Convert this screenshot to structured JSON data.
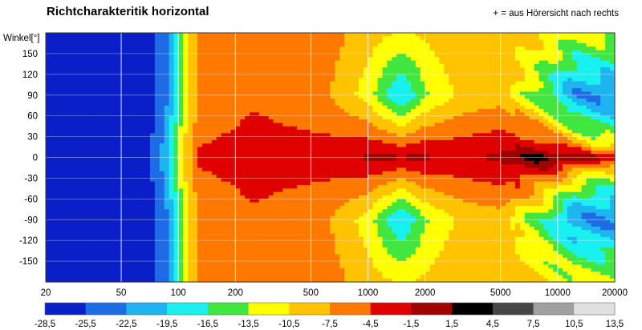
{
  "chart_data": {
    "type": "heatmap",
    "title": "Richtcharakteritik horizontal",
    "annotation": "+ = aus Hörersicht nach rechts",
    "ylabel": "Winkel[°]",
    "xlabel": "",
    "x_scale": "log",
    "xlim": [
      20,
      20000
    ],
    "ylim": [
      -180,
      180
    ],
    "x_ticks": [
      "20",
      "50",
      "100",
      "200",
      "500",
      "1000",
      "2000",
      "5000",
      "10000",
      "20000"
    ],
    "x_tick_values": [
      20,
      50,
      100,
      200,
      500,
      1000,
      2000,
      5000,
      10000,
      20000
    ],
    "y_ticks": [
      "150",
      "120",
      "90",
      "60",
      "30",
      "0",
      "-30",
      "-60",
      "-90",
      "-120",
      "-150"
    ],
    "y_tick_values": [
      150,
      120,
      90,
      60,
      30,
      0,
      -30,
      -60,
      -90,
      -120,
      -150
    ],
    "grid": true,
    "colorbar": {
      "labels": [
        "-28,5",
        "-25,5",
        "-22,5",
        "-19,5",
        "-16,5",
        "-13,5",
        "-10,5",
        "-7,5",
        "-4,5",
        "-1,5",
        "1,5",
        "4,5",
        "7,5",
        "10,5",
        "13,5"
      ],
      "values": [
        -28.5,
        -25.5,
        -22.5,
        -19.5,
        -16.5,
        -13.5,
        -10.5,
        -7.5,
        -4.5,
        -1.5,
        1.5,
        4.5,
        7.5,
        10.5,
        13.5
      ],
      "colors": [
        "#0a1fc8",
        "#1e6be6",
        "#1eb4f0",
        "#19f0f0",
        "#41e641",
        "#ffff00",
        "#ffc300",
        "#ff7800",
        "#e10000",
        "#a00000",
        "#000000",
        "#464646",
        "#a0a0a0",
        "#e1e1e1"
      ]
    },
    "pattern_description_levels": {
      "frequency_hz": [
        20,
        70,
        85,
        95,
        110,
        130,
        250,
        600,
        1000,
        1500,
        2000,
        3000,
        5000,
        8000,
        12000,
        20000
      ],
      "on_axis_level": [
        -28,
        -26,
        -21,
        -16,
        -9,
        -4,
        -3,
        -3,
        -1,
        -1,
        -1,
        -2,
        -1,
        3,
        4,
        4
      ],
      "off_axis_90_level": [
        -28,
        -27,
        -24,
        -19,
        -12,
        -7,
        -5,
        -7,
        -12,
        -20,
        -14,
        -10,
        -9,
        -15,
        -22,
        -23
      ],
      "off_axis_180_level": [
        -28,
        -27,
        -24,
        -19,
        -12,
        -7,
        -5,
        -6,
        -9,
        -11,
        -10,
        -8,
        -8,
        -10,
        -12,
        -12
      ]
    }
  }
}
